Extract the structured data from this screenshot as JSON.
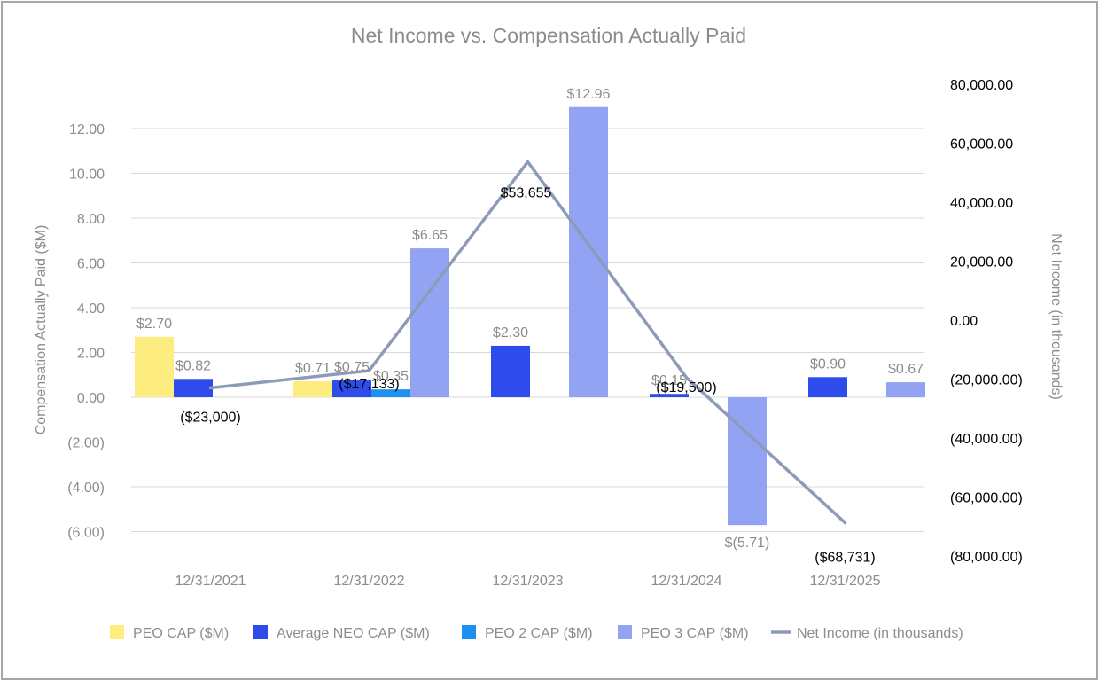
{
  "chart_data": {
    "type": "bar",
    "title": "Net Income vs. Compensation Actually Paid",
    "ylabel": "Compensation Actually Paid ($M)",
    "y2label": "Net Income (in thousands)",
    "ylim": [
      -6,
      14
    ],
    "y2lim": [
      -80000,
      80000
    ],
    "yticks": [
      "12.00",
      "10.00",
      "8.00",
      "6.00",
      "4.00",
      "2.00",
      "0.00",
      "(2.00)",
      "(4.00)",
      "(6.00)"
    ],
    "y2ticks": [
      "80,000.00",
      "60,000.00",
      "40,000.00",
      "20,000.00",
      "0.00",
      "(20,000.00)",
      "(40,000.00)",
      "(60,000.00)",
      "(80,000.00)"
    ],
    "categories": [
      "12/31/2021",
      "12/31/2022",
      "12/31/2023",
      "12/31/2024",
      "12/31/2025"
    ],
    "series": [
      {
        "name": "PEO CAP ($M)",
        "color": "#fdec80",
        "values": [
          2.7,
          0.71,
          null,
          null,
          null
        ],
        "labels": [
          "$2.70",
          "$0.71",
          "",
          "",
          ""
        ]
      },
      {
        "name": "Average NEO CAP ($M)",
        "color": "#2e4ceb",
        "values": [
          0.82,
          0.75,
          2.3,
          0.15,
          0.9
        ],
        "labels": [
          "$0.82",
          "$0.75",
          "$2.30",
          "$0.15",
          "$0.90"
        ]
      },
      {
        "name": "PEO 2 CAP ($M)",
        "color": "#1e90ef",
        "values": [
          null,
          0.35,
          null,
          null,
          null
        ],
        "labels": [
          "",
          "$0.35",
          "",
          "",
          ""
        ]
      },
      {
        "name": "PEO 3 CAP ($M)",
        "color": "#93a3f4",
        "values": [
          null,
          6.65,
          12.96,
          -5.71,
          0.67
        ],
        "labels": [
          "",
          "$6.65",
          "$12.96",
          "$(5.71)",
          "$0.67"
        ]
      }
    ],
    "line_series": {
      "name": "Net Income (in thousands)",
      "color": "#8e9bb8",
      "axis": "right",
      "values": [
        -23000,
        -17133,
        53655,
        -19500,
        -68731
      ],
      "labels": [
        "($23,000)",
        "($17,133)",
        "$53,655",
        "($19,500)",
        "($68,731)"
      ]
    },
    "legend_position": "bottom"
  }
}
